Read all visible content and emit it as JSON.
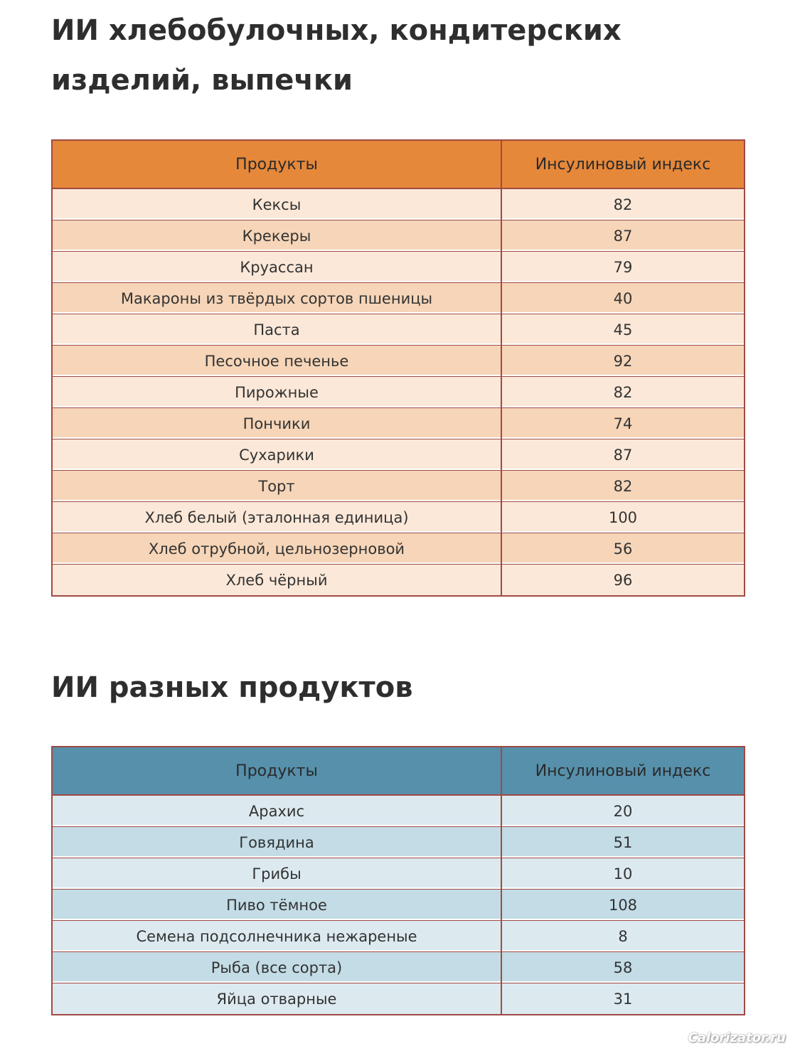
{
  "sections": [
    {
      "title": "ИИ хлебобулочных, кондитерских изделий, выпечки",
      "columns": [
        "Продукты",
        "Инсулиновый индекс"
      ],
      "rows": [
        {
          "product": "Кексы",
          "index": "82"
        },
        {
          "product": "Крекеры",
          "index": "87"
        },
        {
          "product": "Круассан",
          "index": "79"
        },
        {
          "product": "Макароны из твёрдых сортов пшеницы",
          "index": "40"
        },
        {
          "product": "Паста",
          "index": "45"
        },
        {
          "product": "Песочное печенье",
          "index": "92"
        },
        {
          "product": "Пирожные",
          "index": "82"
        },
        {
          "product": "Пончики",
          "index": "74"
        },
        {
          "product": "Сухарики",
          "index": "87"
        },
        {
          "product": "Торт",
          "index": "82"
        },
        {
          "product": "Хлеб белый (эталонная единица)",
          "index": "100"
        },
        {
          "product": "Хлеб отрубной, цельнозерновой",
          "index": "56"
        },
        {
          "product": "Хлеб чёрный",
          "index": "96"
        }
      ]
    },
    {
      "title": "ИИ разных продуктов",
      "columns": [
        "Продукты",
        "Инсулиновый индекс"
      ],
      "rows": [
        {
          "product": "Арахис",
          "index": "20"
        },
        {
          "product": "Говядина",
          "index": "51"
        },
        {
          "product": "Грибы",
          "index": "10"
        },
        {
          "product": "Пиво тёмное",
          "index": "108"
        },
        {
          "product": "Семена подсолнечника нежареные",
          "index": "8"
        },
        {
          "product": "Рыба (все сорта)",
          "index": "58"
        },
        {
          "product": "Яйца отварные",
          "index": "31"
        }
      ]
    }
  ],
  "watermark": "Calorizator.ru",
  "colors": {
    "table1_header": "#e6883a",
    "table1_row_light": "#fbe8d8",
    "table1_row_dark": "#f6d5b8",
    "table2_header": "#5690ab",
    "table2_row_light": "#dceaf0",
    "table2_row_dark": "#c3dce6",
    "border": "#a04a45"
  }
}
